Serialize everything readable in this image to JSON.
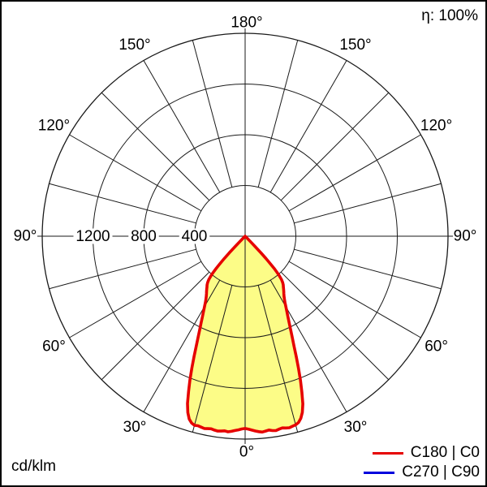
{
  "header": {
    "efficiency": "η: 100%"
  },
  "footer": {
    "unit": "cd/klm"
  },
  "legend": {
    "items": [
      {
        "label": "C180 | C0",
        "color": "#e60000"
      },
      {
        "label": "C270 | C90",
        "color": "#0000dd"
      }
    ]
  },
  "chart_data": {
    "type": "polar",
    "subtype": "luminous-intensity-distribution",
    "unit": "cd/klm",
    "efficiency": "η: 100%",
    "r_axis": {
      "max": 1600,
      "step": 400,
      "labeled_ticks": [
        1200,
        800,
        400
      ]
    },
    "theta_axis": {
      "labels": [
        "0°",
        "30°",
        "60°",
        "90°",
        "120°",
        "150°",
        "180°"
      ],
      "label_step_deg": 30,
      "grid_step_deg": 15
    },
    "colors": {
      "fill": "#fcfc87",
      "curve": "#e60000",
      "grid": "#1a1a1a",
      "background": "#ffffff",
      "text": "#000000"
    },
    "series": [
      {
        "name": "C180 | C0",
        "color": "#e60000",
        "points_deg_cdklm": [
          [
            -45,
            15
          ],
          [
            -44.5,
            60
          ],
          [
            -44,
            120
          ],
          [
            -43.5,
            180
          ],
          [
            -43,
            240
          ],
          [
            -42.5,
            295
          ],
          [
            -42,
            340
          ],
          [
            -41.5,
            375
          ],
          [
            -41,
            405
          ],
          [
            -40,
            445
          ],
          [
            -39,
            470
          ],
          [
            -38,
            488
          ],
          [
            -37,
            500
          ],
          [
            -36,
            515
          ],
          [
            -35,
            530
          ],
          [
            -34,
            545
          ],
          [
            -33,
            562
          ],
          [
            -32,
            582
          ],
          [
            -31,
            608
          ],
          [
            -30,
            640
          ],
          [
            -29,
            676
          ],
          [
            -28,
            716
          ],
          [
            -27,
            762
          ],
          [
            -26,
            815
          ],
          [
            -25,
            875
          ],
          [
            -24,
            945
          ],
          [
            -23,
            1030
          ],
          [
            -22,
            1120
          ],
          [
            -21,
            1215
          ],
          [
            -20,
            1305
          ],
          [
            -19,
            1395
          ],
          [
            -18,
            1462
          ],
          [
            -17,
            1508
          ],
          [
            -16,
            1532
          ],
          [
            -15,
            1544
          ],
          [
            -14,
            1540
          ],
          [
            -13,
            1545
          ],
          [
            -12,
            1550
          ],
          [
            -11,
            1546
          ],
          [
            -10,
            1542
          ],
          [
            -9,
            1548
          ],
          [
            -8,
            1552
          ],
          [
            -7,
            1548
          ],
          [
            -6,
            1543
          ],
          [
            -5,
            1548
          ],
          [
            -4,
            1542
          ],
          [
            -3,
            1534
          ],
          [
            -2,
            1528
          ],
          [
            -1,
            1520
          ],
          [
            0,
            1516
          ],
          [
            1,
            1522
          ],
          [
            2,
            1530
          ],
          [
            3,
            1538
          ],
          [
            4,
            1545
          ],
          [
            5,
            1550
          ],
          [
            6,
            1545
          ],
          [
            7,
            1540
          ],
          [
            8,
            1548
          ],
          [
            9,
            1552
          ],
          [
            10,
            1545
          ],
          [
            11,
            1540
          ],
          [
            12,
            1546
          ],
          [
            13,
            1550
          ],
          [
            14,
            1544
          ],
          [
            15,
            1540
          ],
          [
            16,
            1528
          ],
          [
            17,
            1502
          ],
          [
            18,
            1460
          ],
          [
            19,
            1398
          ],
          [
            20,
            1308
          ],
          [
            21,
            1218
          ],
          [
            22,
            1122
          ],
          [
            23,
            1032
          ],
          [
            24,
            948
          ],
          [
            25,
            878
          ],
          [
            26,
            818
          ],
          [
            27,
            764
          ],
          [
            28,
            718
          ],
          [
            29,
            678
          ],
          [
            30,
            642
          ],
          [
            31,
            610
          ],
          [
            32,
            584
          ],
          [
            33,
            563
          ],
          [
            34,
            546
          ],
          [
            35,
            531
          ],
          [
            36,
            516
          ],
          [
            37,
            501
          ],
          [
            38,
            489
          ],
          [
            39,
            471
          ],
          [
            40,
            446
          ],
          [
            41,
            406
          ],
          [
            41.5,
            376
          ],
          [
            42,
            341
          ],
          [
            42.5,
            296
          ],
          [
            43,
            241
          ],
          [
            43.5,
            181
          ],
          [
            44,
            121
          ],
          [
            44.5,
            61
          ],
          [
            45,
            16
          ]
        ]
      },
      {
        "name": "C270 | C90",
        "color": "#0000dd",
        "points_deg_cdklm": []
      }
    ]
  }
}
